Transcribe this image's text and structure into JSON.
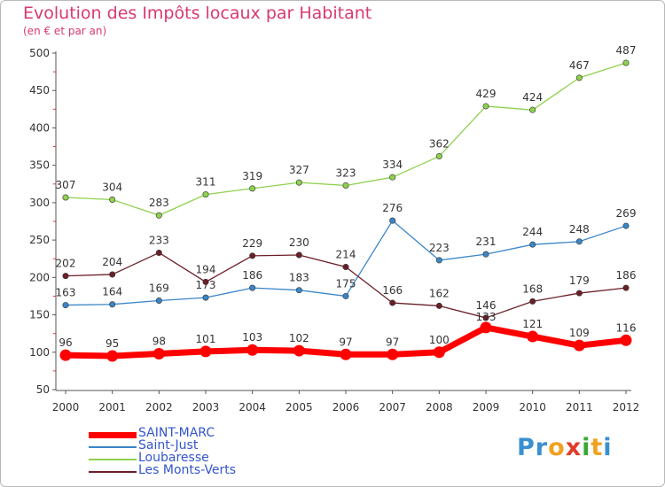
{
  "title": "Evolution des Impôts locaux par Habitant",
  "subtitle": "(en € et par an)",
  "logo": {
    "text": "Proxiti",
    "letters": [
      "P",
      "r",
      "o",
      "x",
      "i",
      "t",
      "i"
    ],
    "colors": [
      "#3a8fd0",
      "#3a8fd0",
      "#f0a21f",
      "#e23b2a",
      "#39a935",
      "#f0a21f",
      "#3a8fd0"
    ]
  },
  "chart_data": {
    "type": "line",
    "title": "Evolution des Impôts locaux par Habitant",
    "subtitle": "(en € et par an)",
    "x": [
      "2000",
      "2001",
      "2002",
      "2003",
      "2004",
      "2005",
      "2006",
      "2007",
      "2008",
      "2009",
      "2010",
      "2011",
      "2012"
    ],
    "ylim": [
      50,
      500
    ],
    "yticks": [
      50,
      100,
      150,
      200,
      250,
      300,
      350,
      400,
      450,
      500
    ],
    "grid": false,
    "legend_position": "bottom-left",
    "series": [
      {
        "name": "Saint-Just",
        "color": "#3b86c8",
        "values": [
          163,
          164,
          169,
          173,
          186,
          183,
          175,
          276,
          223,
          231,
          244,
          248,
          269
        ]
      },
      {
        "name": "Loubaresse",
        "color": "#8fd14f",
        "values": [
          307,
          304,
          283,
          311,
          319,
          327,
          323,
          334,
          362,
          429,
          424,
          467,
          487
        ]
      },
      {
        "name": "Les Monts-Verts",
        "color": "#6b1f28",
        "values": [
          202,
          204,
          233,
          194,
          229,
          230,
          214,
          166,
          162,
          146,
          168,
          179,
          186
        ]
      },
      {
        "name": "SAINT-MARC",
        "color": "#ff0000",
        "values": [
          96,
          95,
          98,
          101,
          103,
          102,
          97,
          97,
          100,
          133,
          121,
          109,
          116
        ],
        "labels": [
          "96",
          "95",
          "98",
          "101",
          "103",
          "102",
          "97",
          "97",
          "100",
          "",
          "121",
          "109",
          "116"
        ]
      }
    ],
    "overlap_label": "133"
  }
}
